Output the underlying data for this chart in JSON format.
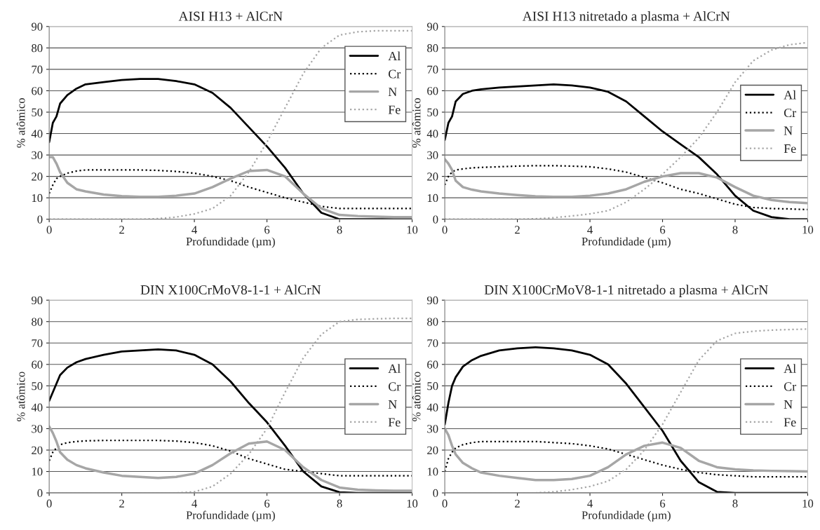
{
  "chart_data": [
    {
      "type": "line",
      "title": "AISI H13 + AlCrN",
      "xlabel": "Profundidade (µm)",
      "ylabel": "% atômico",
      "xlim": [
        0,
        10
      ],
      "xticks": [
        0,
        2,
        4,
        6,
        8,
        10
      ],
      "ylim": [
        0,
        90
      ],
      "yticks": [
        0,
        10,
        20,
        30,
        40,
        50,
        60,
        70,
        80,
        90
      ],
      "grid": "y",
      "legend": "top right",
      "x": [
        0,
        0.1,
        0.2,
        0.3,
        0.5,
        0.75,
        1,
        1.5,
        2,
        2.5,
        3,
        3.5,
        4,
        4.5,
        5,
        5.5,
        6,
        6.5,
        7,
        7.5,
        8,
        8.5,
        9,
        9.5,
        10
      ],
      "series": [
        {
          "name": "Al",
          "color": "#000000",
          "line_style": "solid",
          "values": [
            36,
            45,
            48,
            54,
            58,
            61,
            63,
            64,
            65,
            65.5,
            65.5,
            64.5,
            63,
            59,
            52,
            43,
            34,
            24,
            12,
            3,
            0,
            0,
            0,
            0,
            0
          ]
        },
        {
          "name": "Cr",
          "color": "#000000",
          "line_style": "dotted",
          "values": [
            12,
            16,
            19,
            20,
            21.5,
            22.5,
            23,
            23,
            23,
            23,
            22.8,
            22.3,
            21.5,
            20,
            18,
            15,
            12.5,
            10,
            8,
            6,
            5,
            5,
            5,
            5,
            5
          ]
        },
        {
          "name": "N",
          "color": "#a6a6a6",
          "line_style": "solid",
          "values": [
            29,
            29,
            26,
            22,
            17,
            14,
            13,
            11.5,
            10.8,
            10.5,
            10.5,
            11,
            12,
            15,
            19,
            22.5,
            23,
            20,
            12,
            5,
            2,
            1.5,
            1.2,
            1,
            1
          ]
        },
        {
          "name": "Fe",
          "color": "#a6a6a6",
          "line_style": "dotted",
          "values": [
            0,
            0,
            0,
            0,
            0,
            0,
            0,
            0,
            0,
            0,
            0.3,
            1,
            2.5,
            5,
            11,
            22,
            36,
            52,
            68,
            80,
            86,
            87.5,
            88,
            88,
            88
          ]
        }
      ]
    },
    {
      "type": "line",
      "title": "AISI H13 nitretado a plasma + AlCrN",
      "xlabel": "Profundidade (µm)",
      "ylabel": "% atômico",
      "xlim": [
        0,
        10
      ],
      "xticks": [
        0,
        2,
        4,
        6,
        8,
        10
      ],
      "ylim": [
        0,
        90
      ],
      "yticks": [
        0,
        10,
        20,
        30,
        40,
        50,
        60,
        70,
        80,
        90
      ],
      "grid": "y",
      "legend": "right",
      "x": [
        0,
        0.1,
        0.2,
        0.3,
        0.5,
        0.75,
        1,
        1.5,
        2,
        2.5,
        3,
        3.5,
        4,
        4.5,
        5,
        5.5,
        6,
        6.5,
        7,
        7.5,
        8,
        8.5,
        9,
        9.5,
        10
      ],
      "series": [
        {
          "name": "Al",
          "color": "#000000",
          "line_style": "solid",
          "values": [
            37,
            45,
            48,
            55,
            58.5,
            60,
            60.7,
            61.5,
            62,
            62.5,
            63,
            62.5,
            61.5,
            59.5,
            55,
            48,
            41,
            35,
            29,
            21,
            11,
            4,
            1,
            0,
            0
          ]
        },
        {
          "name": "Cr",
          "color": "#000000",
          "line_style": "dotted",
          "values": [
            16,
            20,
            22,
            23,
            23.5,
            24,
            24.2,
            24.5,
            24.8,
            25,
            25,
            24.8,
            24.5,
            23.5,
            22,
            19.5,
            17,
            14,
            12,
            9.5,
            7,
            5.5,
            5,
            4.8,
            4.5
          ]
        },
        {
          "name": "N",
          "color": "#a6a6a6",
          "line_style": "solid",
          "values": [
            28,
            26,
            23,
            18,
            15,
            13.8,
            13,
            12,
            11.3,
            10.7,
            10.5,
            10.5,
            11,
            12,
            14,
            17.5,
            20,
            21.5,
            21.5,
            19.5,
            15,
            11,
            9,
            8,
            7.5
          ]
        },
        {
          "name": "Fe",
          "color": "#a6a6a6",
          "line_style": "dotted",
          "values": [
            0,
            0,
            0,
            0,
            0,
            0,
            0,
            0,
            0,
            0.2,
            0.7,
            1.5,
            2.5,
            4,
            8,
            14,
            21,
            29,
            38,
            50,
            64,
            74,
            79,
            81.5,
            82.5
          ]
        }
      ]
    },
    {
      "type": "line",
      "title": "DIN X100CrMoV8-1-1 + AlCrN",
      "xlabel": "Profundidade (µm)",
      "ylabel": "% atômico",
      "xlim": [
        0,
        10
      ],
      "xticks": [
        0,
        2,
        4,
        6,
        8,
        10
      ],
      "ylim": [
        0,
        90
      ],
      "yticks": [
        0,
        10,
        20,
        30,
        40,
        50,
        60,
        70,
        80,
        90
      ],
      "grid": "y",
      "legend": "right",
      "x": [
        0,
        0.1,
        0.2,
        0.3,
        0.5,
        0.75,
        1,
        1.5,
        2,
        2.5,
        3,
        3.5,
        4,
        4.5,
        5,
        5.5,
        6,
        6.5,
        7,
        7.5,
        8,
        8.5,
        9,
        9.5,
        10
      ],
      "series": [
        {
          "name": "Al",
          "color": "#000000",
          "line_style": "solid",
          "values": [
            43,
            47,
            51,
            55,
            58.5,
            61,
            62.5,
            64.5,
            66,
            66.5,
            67,
            66.5,
            64.5,
            60,
            52,
            42,
            33,
            22,
            10,
            3,
            0.3,
            0,
            0,
            0,
            0
          ]
        },
        {
          "name": "Cr",
          "color": "#000000",
          "line_style": "dotted",
          "values": [
            15,
            19,
            21,
            22.5,
            23.5,
            24,
            24.3,
            24.5,
            24.5,
            24.5,
            24.5,
            24.2,
            23.5,
            22,
            19.5,
            16,
            13.5,
            11,
            10,
            9,
            8,
            8,
            8,
            8,
            8
          ]
        },
        {
          "name": "N",
          "color": "#a6a6a6",
          "line_style": "solid",
          "values": [
            31,
            28,
            24,
            19,
            15.5,
            13,
            11.5,
            9.5,
            8,
            7.5,
            7,
            7.5,
            9,
            13,
            18.5,
            23,
            24,
            20,
            12,
            6,
            2.5,
            1.5,
            1.2,
            1,
            1
          ]
        },
        {
          "name": "Fe",
          "color": "#a6a6a6",
          "line_style": "dotted",
          "values": [
            0,
            0,
            0,
            0,
            0,
            0,
            0,
            0,
            0,
            0,
            0,
            0,
            0.5,
            3,
            9,
            18,
            30,
            47,
            63,
            74,
            80,
            81,
            81.3,
            81.5,
            81.5
          ]
        }
      ]
    },
    {
      "type": "line",
      "title": "DIN X100CrMoV8-1-1 nitretado a plasma + AlCrN",
      "xlabel": "Profundidade (µm)",
      "ylabel": "% atômico",
      "xlim": [
        0,
        10
      ],
      "xticks": [
        0,
        2,
        4,
        6,
        8,
        10
      ],
      "ylim": [
        0,
        90
      ],
      "yticks": [
        0,
        10,
        20,
        30,
        40,
        50,
        60,
        70,
        80,
        90
      ],
      "grid": "y",
      "legend": "right",
      "x": [
        0,
        0.1,
        0.2,
        0.3,
        0.5,
        0.75,
        1,
        1.5,
        2,
        2.5,
        3,
        3.5,
        4,
        4.5,
        5,
        5.5,
        6,
        6.5,
        7,
        7.5,
        8,
        8.5,
        9,
        9.5,
        10
      ],
      "series": [
        {
          "name": "Al",
          "color": "#000000",
          "line_style": "solid",
          "values": [
            32,
            42,
            50,
            54,
            59,
            62,
            64,
            66.5,
            67.5,
            68,
            67.5,
            66.5,
            64.5,
            60,
            51,
            40,
            29,
            15,
            5,
            0.5,
            0,
            0,
            0,
            0,
            0
          ]
        },
        {
          "name": "Cr",
          "color": "#000000",
          "line_style": "dotted",
          "values": [
            10,
            16,
            19,
            21,
            22.5,
            23.5,
            24,
            24,
            24,
            24,
            23.5,
            23,
            22,
            20.5,
            18,
            15.5,
            13,
            11,
            9.5,
            8.5,
            8,
            7.5,
            7.5,
            7.5,
            7.5
          ]
        },
        {
          "name": "N",
          "color": "#a6a6a6",
          "line_style": "solid",
          "values": [
            30,
            27,
            22,
            18,
            14,
            11.5,
            9.5,
            8,
            7,
            6,
            6,
            6.5,
            8,
            12,
            18,
            22,
            23.5,
            21,
            15,
            12,
            11,
            10.5,
            10.3,
            10.2,
            10
          ]
        },
        {
          "name": "Fe",
          "color": "#a6a6a6",
          "line_style": "dotted",
          "values": [
            0,
            0,
            0,
            0,
            0,
            0,
            0,
            0,
            0,
            0,
            0.5,
            1.5,
            3,
            5.5,
            11,
            20,
            32,
            47,
            62,
            71,
            74.5,
            75.5,
            76,
            76.3,
            76.5
          ]
        }
      ]
    }
  ]
}
